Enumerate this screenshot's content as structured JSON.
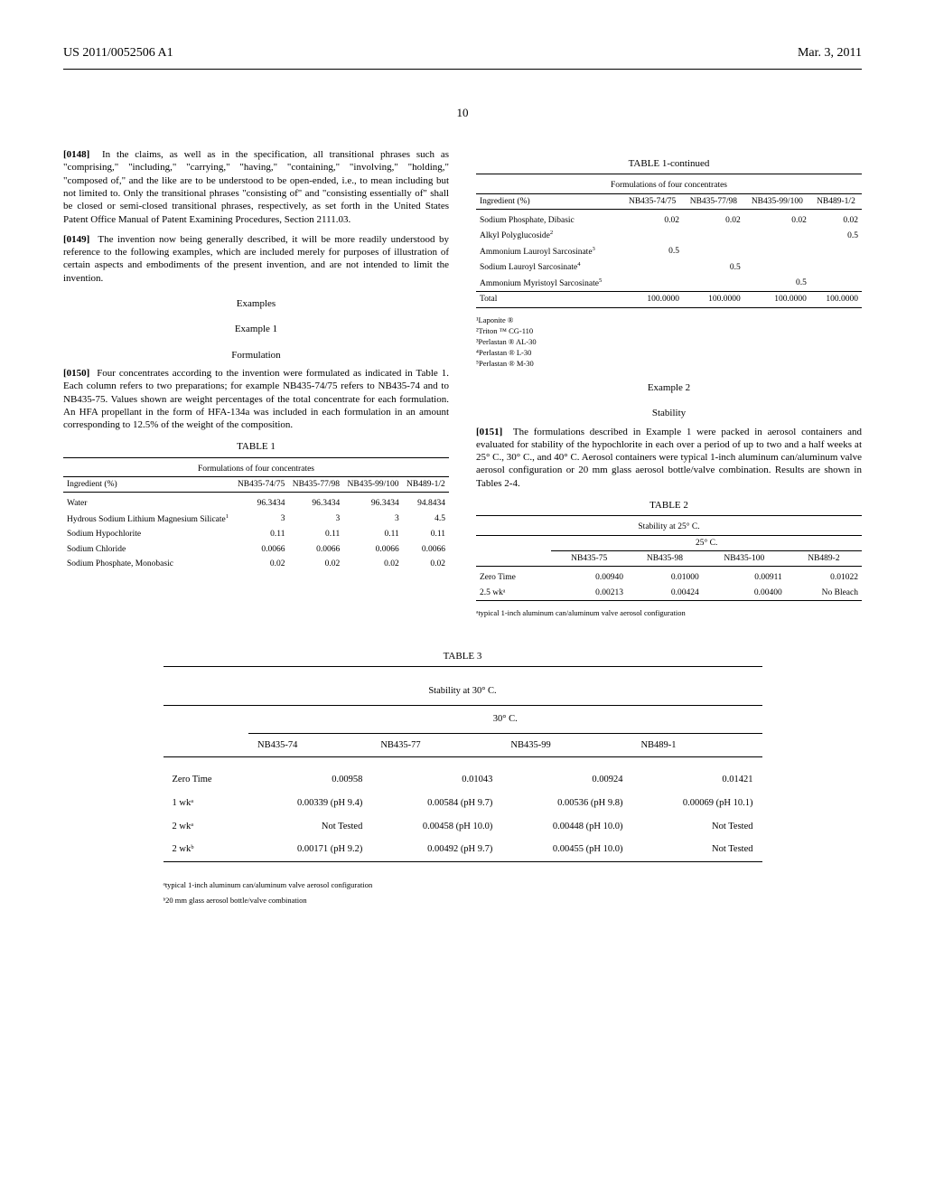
{
  "header": {
    "pub_number": "US 2011/0052506 A1",
    "date": "Mar. 3, 2011"
  },
  "page_number": "10",
  "left": {
    "p0148_num": "[0148]",
    "p0148": "In the claims, as well as in the specification, all transitional phrases such as \"comprising,\" \"including,\" \"carrying,\" \"having,\" \"containing,\" \"involving,\" \"holding,\" \"composed of,\" and the like are to be understood to be open-ended, i.e., to mean including but not limited to. Only the transitional phrases \"consisting of\" and \"consisting essentially of\" shall be closed or semi-closed transitional phrases, respectively, as set forth in the United States Patent Office Manual of Patent Examining Procedures, Section 2111.03.",
    "p0149_num": "[0149]",
    "p0149": "The invention now being generally described, it will be more readily understood by reference to the following examples, which are included merely for purposes of illustration of certain aspects and embodiments of the present invention, and are not intended to limit the invention.",
    "examples_h": "Examples",
    "example1_h": "Example 1",
    "formulation_h": "Formulation",
    "p0150_num": "[0150]",
    "p0150": "Four concentrates according to the invention were formulated as indicated in Table 1. Each column refers to two preparations; for example NB435-74/75 refers to NB435-74 and to NB435-75. Values shown are weight percentages of the total concentrate for each formulation. An HFA propellant in the form of HFA-134a was included in each formulation in an amount corresponding to 12.5% of the weight of the composition.",
    "table1": {
      "title": "TABLE 1",
      "caption": "Formulations of four concentrates",
      "head_ingredient": "Ingredient (%)",
      "cols": [
        "NB435-74/75",
        "NB435-77/98",
        "NB435-99/100",
        "NB489-1/2"
      ],
      "rows": [
        {
          "label": "Water",
          "sup": "",
          "vals": [
            "96.3434",
            "96.3434",
            "96.3434",
            "94.8434"
          ]
        },
        {
          "label": "Hydrous Sodium Lithium Magnesium Silicate",
          "sup": "1",
          "vals": [
            "3",
            "3",
            "3",
            "4.5"
          ]
        },
        {
          "label": "Sodium Hypochlorite",
          "sup": "",
          "vals": [
            "0.11",
            "0.11",
            "0.11",
            "0.11"
          ]
        },
        {
          "label": "Sodium Chloride",
          "sup": "",
          "vals": [
            "0.0066",
            "0.0066",
            "0.0066",
            "0.0066"
          ]
        },
        {
          "label": "Sodium Phosphate, Monobasic",
          "sup": "",
          "vals": [
            "0.02",
            "0.02",
            "0.02",
            "0.02"
          ]
        }
      ]
    }
  },
  "right": {
    "table1c": {
      "title": "TABLE 1-continued",
      "caption": "Formulations of four concentrates",
      "head_ingredient": "Ingredient (%)",
      "cols": [
        "NB435-74/75",
        "NB435-77/98",
        "NB435-99/100",
        "NB489-1/2"
      ],
      "rows": [
        {
          "label": "Sodium Phosphate, Dibasic",
          "sup": "",
          "vals": [
            "0.02",
            "0.02",
            "0.02",
            "0.02"
          ]
        },
        {
          "label": "Alkyl Polyglucoside",
          "sup": "2",
          "vals": [
            "",
            "",
            "",
            "0.5"
          ]
        },
        {
          "label": "Ammonium Lauroyl Sarcosinate",
          "sup": "3",
          "vals": [
            "0.5",
            "",
            "",
            ""
          ]
        },
        {
          "label": "Sodium Lauroyl Sarcosinate",
          "sup": "4",
          "vals": [
            "",
            "0.5",
            "",
            ""
          ]
        },
        {
          "label": "Ammonium Myristoyl Sarcosinate",
          "sup": "5",
          "vals": [
            "",
            "",
            "0.5",
            ""
          ]
        }
      ],
      "total_label": "Total",
      "total_vals": [
        "100.0000",
        "100.0000",
        "100.0000",
        "100.0000"
      ],
      "footnotes": [
        "¹Laponite ®",
        "²Triton ™ CG-110",
        "³Perlastan ® AL-30",
        "⁴Perlastan ® L-30",
        "⁵Perlastan ® M-30"
      ]
    },
    "example2_h": "Example 2",
    "stability_h": "Stability",
    "p0151_num": "[0151]",
    "p0151": "The formulations described in Example 1 were packed in aerosol containers and evaluated for stability of the hypochlorite in each over a period of up to two and a half weeks at 25° C., 30° C., and 40° C. Aerosol containers were typical 1-inch aluminum can/aluminum valve aerosol configuration or 20 mm glass aerosol bottle/valve combination. Results are shown in Tables 2-4.",
    "table2": {
      "title": "TABLE 2",
      "caption": "Stability at 25° C.",
      "temp_head": "25° C.",
      "cols": [
        "NB435-75",
        "NB435-98",
        "NB435-100",
        "NB489-2"
      ],
      "rows": [
        {
          "label": "Zero Time",
          "vals": [
            "0.00940",
            "0.01000",
            "0.00911",
            "0.01022"
          ]
        },
        {
          "label": "2.5 wkᵃ",
          "vals": [
            "0.00213",
            "0.00424",
            "0.00400",
            "No Bleach"
          ]
        }
      ],
      "footnote": "ᵃtypical 1-inch aluminum can/aluminum valve aerosol configuration"
    }
  },
  "table3": {
    "title": "TABLE 3",
    "caption": "Stability at 30° C.",
    "temp_head": "30° C.",
    "cols": [
      "NB435-74",
      "NB435-77",
      "NB435-99",
      "NB489-1"
    ],
    "rows": [
      {
        "label": "Zero Time",
        "vals": [
          "0.00958",
          "0.01043",
          "0.00924",
          "0.01421"
        ]
      },
      {
        "label": "1 wkᵃ",
        "vals": [
          "0.00339 (pH 9.4)",
          "0.00584 (pH 9.7)",
          "0.00536 (pH 9.8)",
          "0.00069 (pH 10.1)"
        ]
      },
      {
        "label": "2 wkᵃ",
        "vals": [
          "Not Tested",
          "0.00458 (pH 10.0)",
          "0.00448 (pH 10.0)",
          "Not Tested"
        ]
      },
      {
        "label": "2 wkᵇ",
        "vals": [
          "0.00171 (pH 9.2)",
          "0.00492 (pH 9.7)",
          "0.00455 (pH 10.0)",
          "Not Tested"
        ]
      }
    ],
    "footnotes": [
      "ᵃtypical 1-inch aluminum can/aluminum valve aerosol configuration",
      "ᵇ20 mm glass aerosol bottle/valve combination"
    ]
  }
}
